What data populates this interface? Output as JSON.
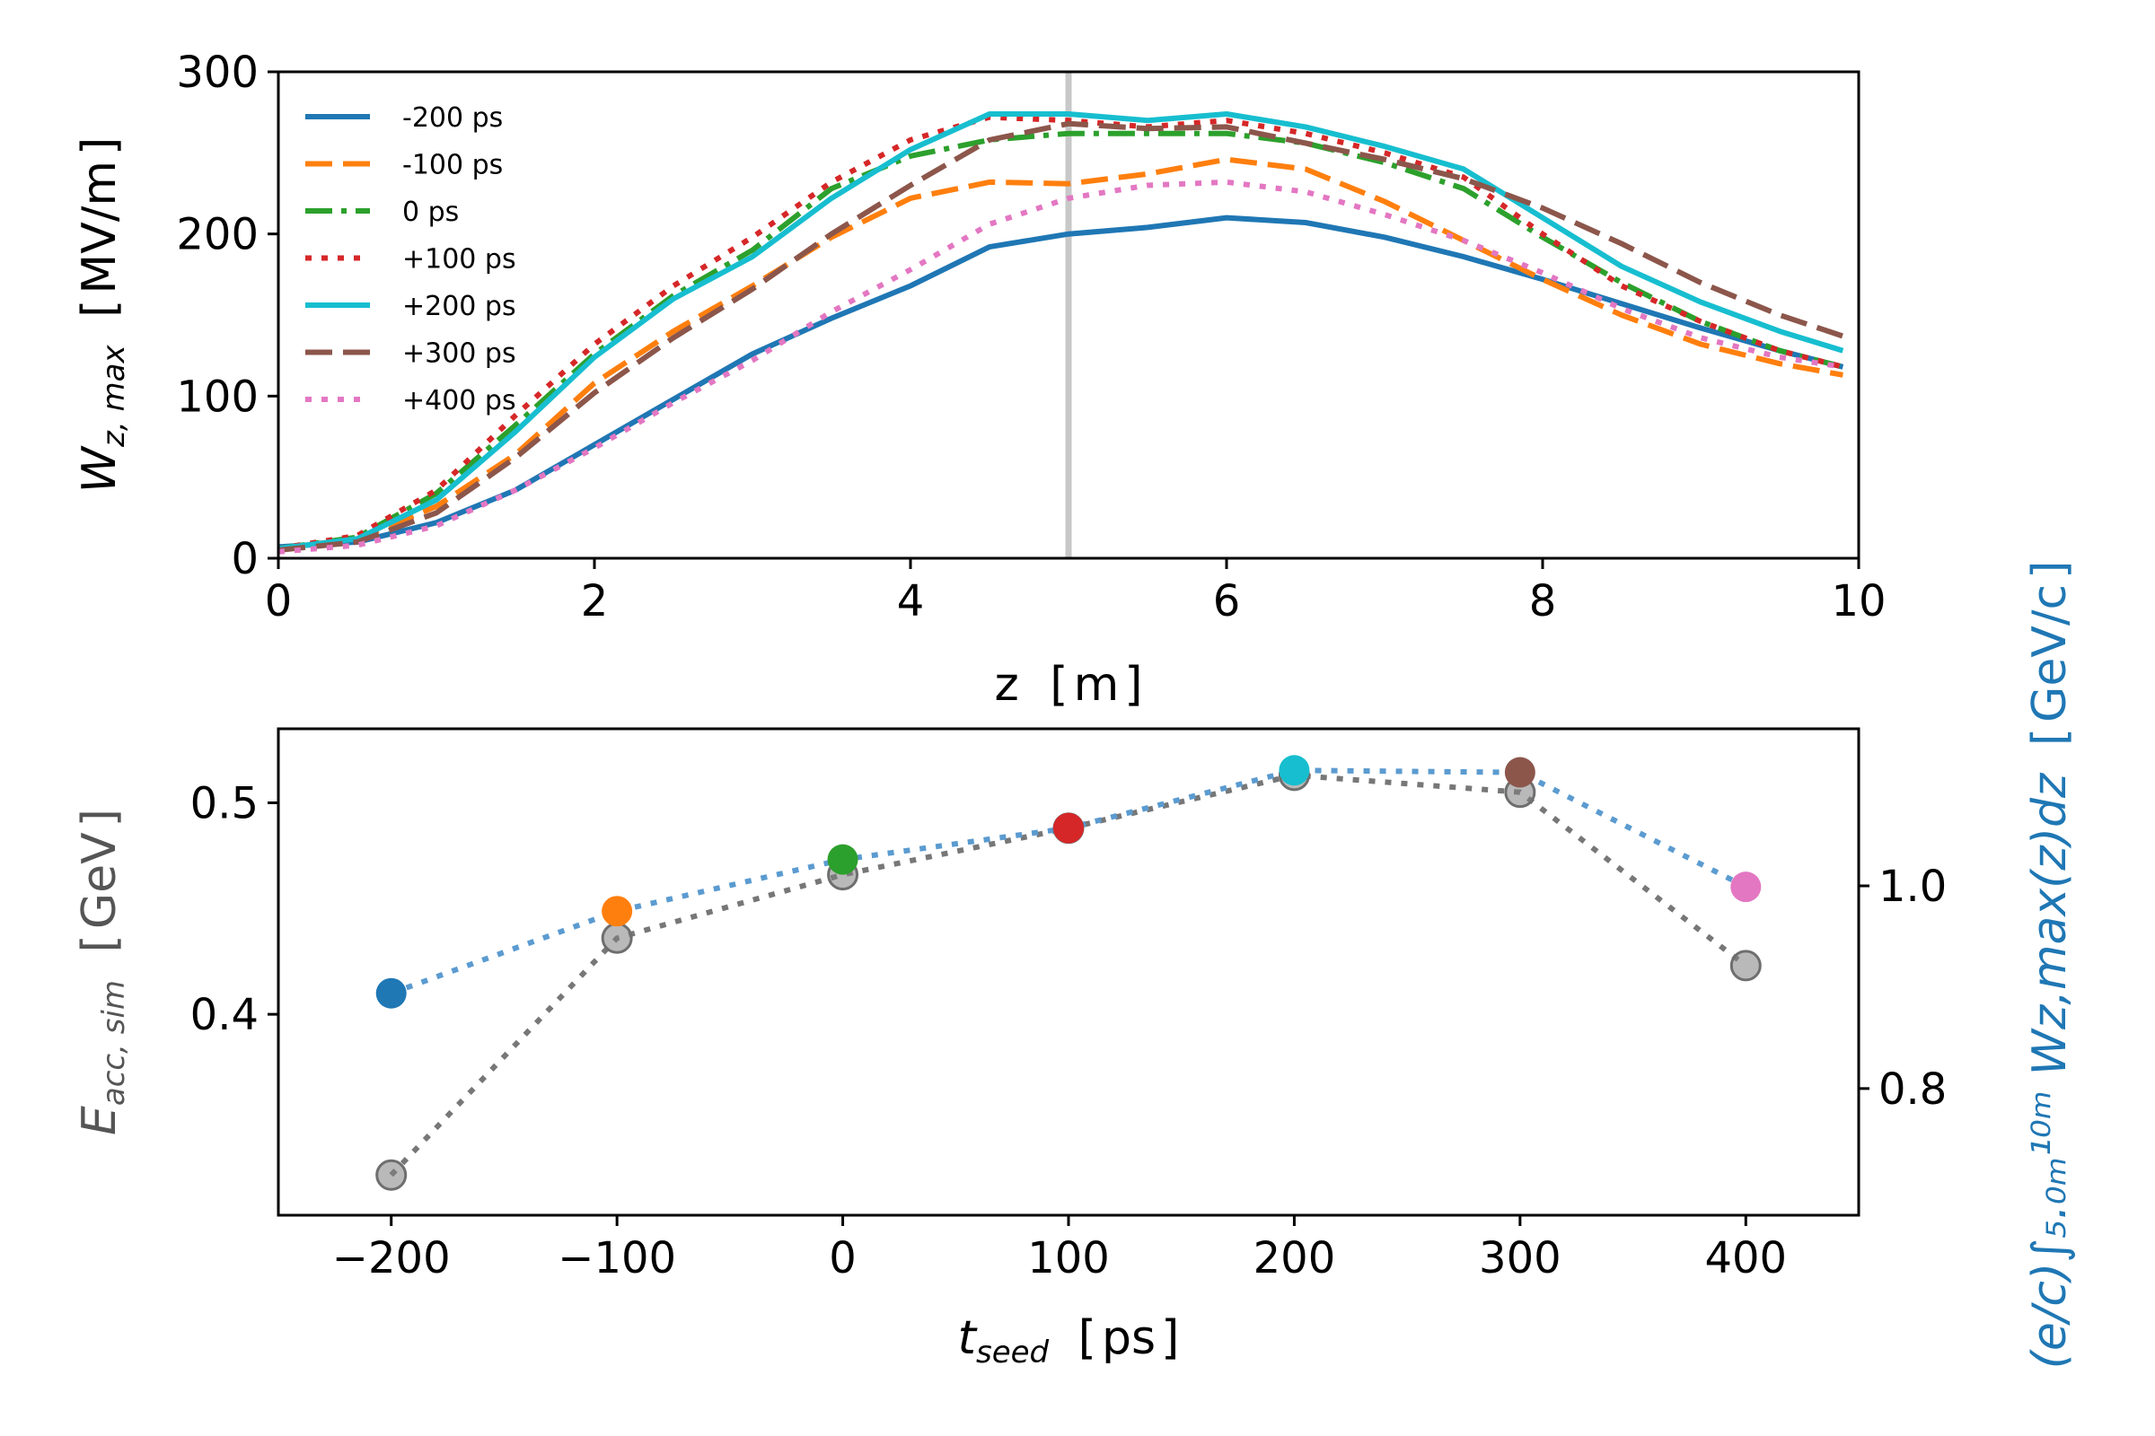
{
  "chart_data": [
    {
      "type": "line",
      "xlabel_main": "z",
      "xlabel_unit": "m",
      "ylabel_main": "W",
      "ylabel_sub": "z, max",
      "ylabel_unit": "MV/m",
      "xlim": [
        0,
        10
      ],
      "ylim": [
        0,
        300
      ],
      "xticks": [
        0,
        2,
        4,
        6,
        8,
        10
      ],
      "xtick_labels": [
        "0",
        "2",
        "4",
        "6",
        "8",
        "10"
      ],
      "yticks": [
        0,
        100,
        200,
        300
      ],
      "ytick_labels": [
        "0",
        "100",
        "200",
        "300"
      ],
      "marker_line_z": 5,
      "legend_position": "top-left",
      "z": [
        0,
        0.5,
        1,
        1.5,
        2,
        2.5,
        3,
        3.5,
        4,
        4.5,
        5,
        5.5,
        6,
        6.5,
        7,
        7.5,
        8,
        8.5,
        9,
        9.5,
        9.9
      ],
      "series": [
        {
          "name": "-200 ps",
          "color": "#1f77b4",
          "dash": "solid",
          "values": [
            7,
            10,
            22,
            42,
            70,
            98,
            126,
            148,
            168,
            192,
            200,
            204,
            210,
            207,
            198,
            186,
            172,
            157,
            142,
            128,
            118
          ]
        },
        {
          "name": "-100 ps",
          "color": "#ff7f0e",
          "dash": "dashed",
          "values": [
            6,
            12,
            32,
            64,
            108,
            140,
            168,
            198,
            222,
            232,
            231,
            237,
            246,
            240,
            220,
            196,
            172,
            150,
            132,
            120,
            113
          ]
        },
        {
          "name": "0 ps",
          "color": "#2ca02c",
          "dash": "dashdot",
          "values": [
            6,
            13,
            40,
            82,
            126,
            162,
            190,
            228,
            248,
            258,
            262,
            262,
            262,
            256,
            244,
            228,
            198,
            170,
            146,
            128,
            118
          ]
        },
        {
          "name": "+100 ps",
          "color": "#d62728",
          "dash": "dotted",
          "values": [
            6,
            14,
            42,
            88,
            132,
            168,
            198,
            232,
            258,
            272,
            270,
            266,
            270,
            262,
            250,
            235,
            200,
            168,
            146,
            128,
            118
          ]
        },
        {
          "name": "+200 ps",
          "color": "#17becf",
          "dash": "solid",
          "values": [
            6,
            12,
            36,
            78,
            124,
            160,
            186,
            222,
            252,
            274,
            274,
            270,
            274,
            266,
            254,
            240,
            210,
            180,
            158,
            140,
            128
          ]
        },
        {
          "name": "+300 ps",
          "color": "#8c564b",
          "dash": "dashed",
          "values": [
            5,
            10,
            28,
            62,
            102,
            136,
            166,
            200,
            230,
            258,
            268,
            265,
            266,
            256,
            246,
            234,
            216,
            194,
            170,
            150,
            137
          ]
        },
        {
          "name": "+400 ps",
          "color": "#e377c2",
          "dash": "dotted",
          "values": [
            4,
            8,
            20,
            42,
            68,
            96,
            122,
            152,
            178,
            206,
            222,
            230,
            232,
            226,
            212,
            196,
            176,
            154,
            136,
            124,
            118
          ]
        }
      ]
    },
    {
      "type": "scatter",
      "xlabel_main": "t",
      "xlabel_sub": "seed",
      "xlabel_unit": "ps",
      "ylabel_left_main": "E",
      "ylabel_left_sub": "acc, sim",
      "ylabel_left_unit": "GeV",
      "ylabel_right_text": "(e/c)∫₅.₀ₘ¹⁰ᵐ Wz,max(z)dz",
      "ylabel_right_unit": "GeV/c",
      "xlim": [
        -250,
        450
      ],
      "ylim_left": [
        0.305,
        0.535
      ],
      "ylim_right": [
        0.675,
        1.155
      ],
      "xticks": [
        -200,
        -100,
        0,
        100,
        200,
        300,
        400
      ],
      "xtick_labels": [
        "−200",
        "−100",
        "0",
        "100",
        "200",
        "300",
        "400"
      ],
      "yticks_left": [
        0.4,
        0.5
      ],
      "ytick_labels_left": [
        "0.4",
        "0.5"
      ],
      "yticks_right": [
        0.8,
        1.0
      ],
      "ytick_labels_right": [
        "0.8",
        "1.0"
      ],
      "x": [
        -200,
        -100,
        0,
        100,
        200,
        300,
        400
      ],
      "series": [
        {
          "name": "E_acc,sim",
          "axis": "left",
          "color": "#808080",
          "values": [
            0.324,
            0.436,
            0.466,
            0.488,
            0.513,
            0.505,
            0.423
          ]
        },
        {
          "name": "integrated W_z,max",
          "axis": "right",
          "color": "#1f77b4",
          "values": [
            0.894,
            0.975,
            1.026,
            1.057,
            1.114,
            1.112,
            0.999
          ]
        }
      ],
      "point_colors": [
        "#1f77b4",
        "#ff7f0e",
        "#2ca02c",
        "#d62728",
        "#17becf",
        "#8c564b",
        "#e377c2"
      ]
    }
  ]
}
